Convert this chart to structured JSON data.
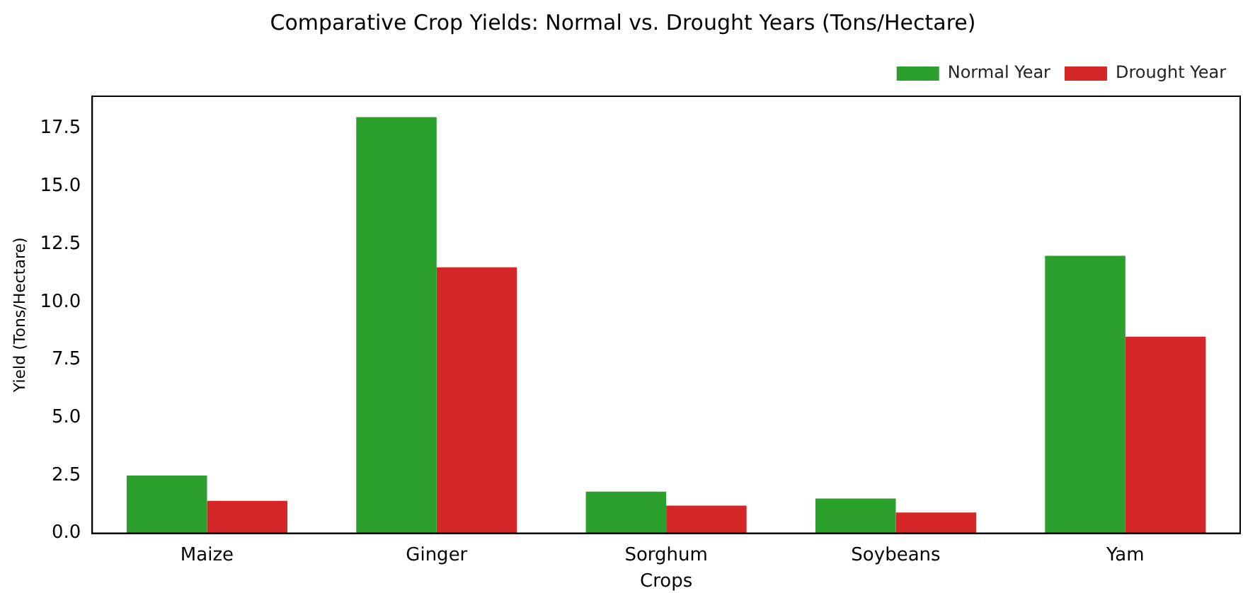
{
  "chart_data": {
    "type": "bar",
    "title": "Comparative Crop Yields: Normal vs. Drought Years (Tons/Hectare)",
    "xlabel": "Crops",
    "ylabel": "Yield (Tons/Hectare)",
    "categories": [
      "Maize",
      "Ginger",
      "Sorghum",
      "Soybeans",
      "Yam"
    ],
    "series": [
      {
        "name": "Normal Year",
        "color": "#2ca02c",
        "values": [
          2.5,
          18,
          1.8,
          1.5,
          12
        ]
      },
      {
        "name": "Drought Year",
        "color": "#d62728",
        "values": [
          1.4,
          11.5,
          1.2,
          0.9,
          8.5
        ]
      }
    ],
    "ylim": [
      0,
      18.9
    ],
    "yticks": [
      {
        "value": 0,
        "label": "0.0"
      },
      2.5,
      {
        "value": 5,
        "label": "5.0"
      },
      7.5,
      {
        "value": 10,
        "label": "10.0"
      },
      12.5,
      {
        "value": 15,
        "label": "15.0"
      },
      17.5
    ],
    "grid": false,
    "legend": "top right"
  }
}
